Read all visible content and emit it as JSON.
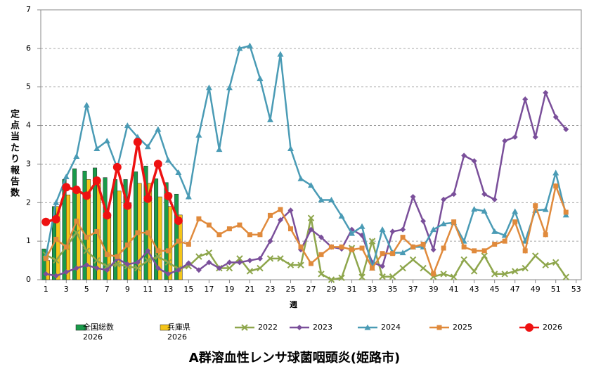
{
  "chart_data": {
    "type": "line",
    "title": "A群溶血性レンサ球菌咽頭炎(姫路市)",
    "x_label": "週",
    "y_label": "定点当たり報告数",
    "x": [
      1,
      2,
      3,
      4,
      5,
      6,
      7,
      8,
      9,
      10,
      11,
      12,
      13,
      14,
      15,
      16,
      17,
      18,
      19,
      20,
      21,
      22,
      23,
      24,
      25,
      26,
      27,
      28,
      29,
      30,
      31,
      32,
      33,
      34,
      35,
      36,
      37,
      38,
      39,
      40,
      41,
      42,
      43,
      44,
      45,
      46,
      47,
      48,
      49,
      50,
      51,
      52
    ],
    "xlim": [
      0.5,
      53.5
    ],
    "xticks": [
      1,
      3,
      5,
      7,
      9,
      11,
      13,
      15,
      17,
      19,
      21,
      23,
      25,
      27,
      29,
      31,
      33,
      35,
      37,
      39,
      41,
      43,
      45,
      47,
      49,
      51,
      53
    ],
    "ylim": [
      0,
      7
    ],
    "yticks": [
      0,
      1,
      2,
      3,
      4,
      5,
      6,
      7
    ],
    "grid": true,
    "series": [
      {
        "name": "全国総数 2026",
        "type": "bar",
        "color": "#1a9a4a",
        "values": [
          0.8,
          1.9,
          2.6,
          2.88,
          2.82,
          2.9,
          2.65,
          2.6,
          2.6,
          2.8,
          2.95,
          2.62,
          2.52,
          2.22,
          null,
          null,
          null,
          null,
          null,
          null,
          null,
          null,
          null,
          null,
          null,
          null,
          null,
          null,
          null,
          null,
          null,
          null,
          null,
          null,
          null,
          null,
          null,
          null,
          null,
          null,
          null,
          null,
          null,
          null,
          null,
          null,
          null,
          null,
          null,
          null,
          null,
          null
        ]
      },
      {
        "name": "兵庫県 2026",
        "type": "bar",
        "color": "#f5c518",
        "values": [
          0.5,
          1.9,
          2.2,
          2.3,
          2.6,
          2.5,
          1.7,
          2.3,
          2.0,
          2.5,
          2.5,
          2.15,
          1.9,
          1.68,
          null,
          null,
          null,
          null,
          null,
          null,
          null,
          null,
          null,
          null,
          null,
          null,
          null,
          null,
          null,
          null,
          null,
          null,
          null,
          null,
          null,
          null,
          null,
          null,
          null,
          null,
          null,
          null,
          null,
          null,
          null,
          null,
          null,
          null,
          null,
          null,
          null,
          null
        ]
      },
      {
        "name": "2022",
        "type": "line",
        "marker": "x",
        "color": "#8ea64c",
        "values": [
          0.65,
          0.5,
          0.85,
          1.22,
          0.75,
          0.5,
          0.35,
          0.4,
          0.35,
          0.3,
          0.5,
          0.6,
          0.45,
          0.28,
          0.35,
          0.6,
          0.7,
          0.3,
          0.3,
          0.55,
          0.22,
          0.3,
          0.55,
          0.55,
          0.38,
          0.38,
          1.6,
          0.15,
          0.0,
          0.05,
          0.82,
          0.07,
          1.0,
          0.08,
          0.08,
          0.3,
          0.52,
          0.3,
          0.08,
          0.15,
          0.07,
          0.52,
          0.22,
          0.62,
          0.15,
          0.15,
          0.22,
          0.3,
          0.62,
          0.38,
          0.45,
          0.07
        ]
      },
      {
        "name": "2023",
        "type": "line",
        "marker": "diamond",
        "color": "#7a4f9a",
        "values": [
          0.15,
          0.1,
          0.2,
          0.3,
          0.38,
          0.3,
          0.25,
          0.55,
          0.4,
          0.45,
          0.75,
          0.3,
          0.15,
          0.25,
          0.43,
          0.25,
          0.45,
          0.3,
          0.45,
          0.45,
          0.5,
          0.55,
          1.0,
          1.55,
          1.8,
          0.78,
          1.3,
          1.1,
          0.85,
          0.8,
          1.3,
          1.15,
          0.45,
          0.35,
          1.25,
          1.3,
          2.15,
          1.52,
          0.78,
          2.08,
          2.22,
          3.22,
          3.08,
          2.22,
          2.08,
          3.6,
          3.7,
          4.68,
          3.7,
          4.85,
          4.22,
          3.9
        ]
      },
      {
        "name": "2024",
        "type": "line",
        "marker": "triangle",
        "color": "#4a9bb5",
        "values": [
          0.6,
          2.0,
          2.67,
          3.2,
          4.53,
          3.4,
          3.6,
          2.9,
          4.0,
          3.7,
          3.45,
          3.9,
          3.1,
          2.78,
          2.15,
          3.75,
          4.98,
          3.38,
          4.98,
          6.0,
          6.07,
          5.22,
          4.15,
          5.85,
          3.4,
          2.62,
          2.45,
          2.07,
          2.07,
          1.65,
          1.2,
          1.38,
          0.3,
          1.3,
          0.7,
          0.7,
          0.85,
          0.85,
          1.3,
          1.45,
          1.48,
          1.0,
          1.83,
          1.78,
          1.25,
          1.15,
          1.77,
          1.0,
          1.8,
          1.82,
          2.77,
          1.68
        ]
      },
      {
        "name": "2025",
        "type": "line",
        "marker": "square",
        "color": "#e08a3c",
        "values": [
          0.55,
          1.05,
          0.85,
          1.52,
          1.1,
          1.25,
          0.65,
          0.6,
          0.9,
          1.22,
          1.22,
          0.75,
          0.75,
          1.0,
          0.92,
          1.58,
          1.42,
          1.17,
          1.32,
          1.42,
          1.17,
          1.17,
          1.67,
          1.82,
          1.32,
          0.85,
          0.42,
          0.65,
          0.85,
          0.85,
          0.78,
          0.82,
          0.3,
          0.68,
          0.68,
          1.1,
          0.85,
          0.92,
          0.15,
          0.82,
          1.5,
          0.85,
          0.75,
          0.75,
          0.92,
          1.0,
          1.5,
          0.75,
          1.92,
          1.17,
          2.43,
          1.75
        ]
      },
      {
        "name": "2026",
        "type": "line",
        "marker": "circle",
        "color": "#ee1111",
        "values": [
          1.5,
          1.57,
          2.4,
          2.33,
          2.18,
          2.57,
          1.67,
          2.92,
          1.92,
          3.57,
          2.1,
          3.0,
          2.17,
          1.53,
          null,
          null,
          null,
          null,
          null,
          null,
          null,
          null,
          null,
          null,
          null,
          null,
          null,
          null,
          null,
          null,
          null,
          null,
          null,
          null,
          null,
          null,
          null,
          null,
          null,
          null,
          null,
          null,
          null,
          null,
          null,
          null,
          null,
          null,
          null,
          null,
          null,
          null
        ]
      }
    ]
  }
}
